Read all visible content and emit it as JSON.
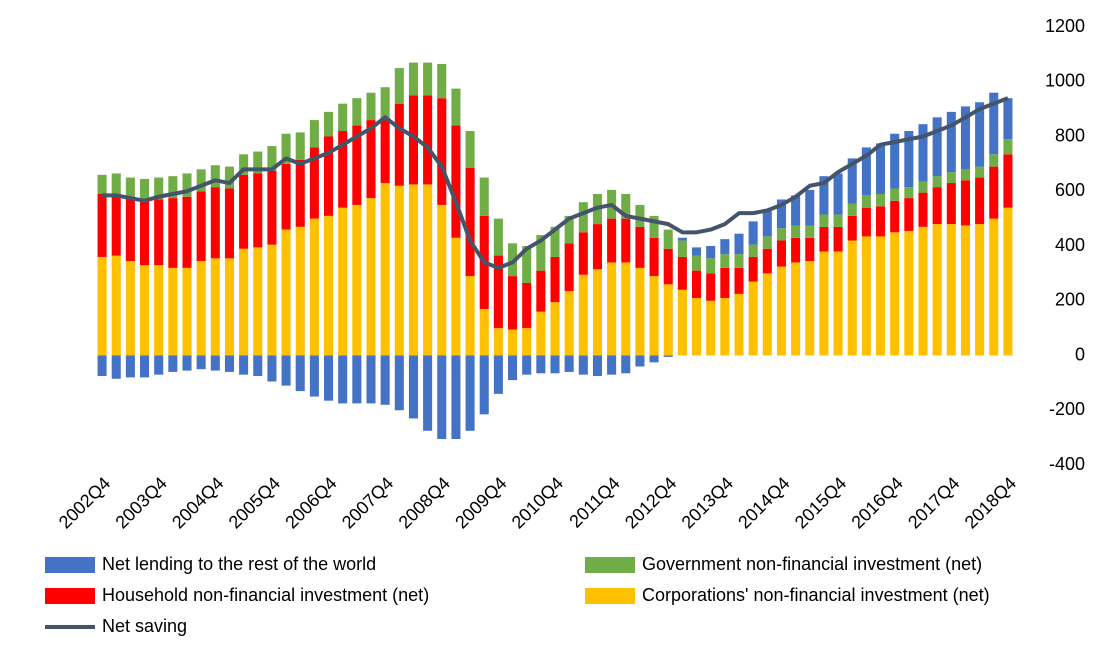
{
  "chart_data": {
    "type": "bar",
    "stacked": true,
    "categories": [
      "2002Q4",
      null,
      null,
      null,
      "2003Q4",
      null,
      null,
      null,
      "2004Q4",
      null,
      null,
      null,
      "2005Q4",
      null,
      null,
      null,
      "2006Q4",
      null,
      null,
      null,
      "2007Q4",
      null,
      null,
      null,
      "2008Q4",
      null,
      null,
      null,
      "2009Q4",
      null,
      null,
      null,
      "2010Q4",
      null,
      null,
      null,
      "2011Q4",
      null,
      null,
      null,
      "2012Q4",
      null,
      null,
      null,
      "2013Q4",
      null,
      null,
      null,
      "2014Q4",
      null,
      null,
      null,
      "2015Q4",
      null,
      null,
      null,
      "2016Q4",
      null,
      null,
      null,
      "2017Q4",
      null,
      null,
      null,
      "2018Q4"
    ],
    "series": [
      {
        "name": "Net lending to the rest of the world",
        "color": "#4472c4",
        "values": [
          -75,
          -85,
          -80,
          -80,
          -70,
          -60,
          -55,
          -50,
          -55,
          -60,
          -70,
          -75,
          -95,
          -110,
          -130,
          -150,
          -165,
          -175,
          -175,
          -175,
          -180,
          -200,
          -230,
          -275,
          -305,
          -305,
          -275,
          -215,
          -140,
          -90,
          -70,
          -65,
          -65,
          -60,
          -70,
          -75,
          -70,
          -65,
          -40,
          -25,
          -5,
          10,
          30,
          45,
          55,
          75,
          85,
          95,
          105,
          110,
          130,
          140,
          150,
          165,
          175,
          185,
          200,
          205,
          210,
          215,
          220,
          230,
          235,
          225,
          150
        ]
      },
      {
        "name": "Government non-financial investment (net)",
        "color": "#70ad47",
        "values": [
          70,
          80,
          75,
          80,
          80,
          80,
          85,
          80,
          80,
          80,
          75,
          80,
          90,
          110,
          100,
          100,
          90,
          100,
          100,
          100,
          110,
          130,
          120,
          120,
          125,
          135,
          135,
          140,
          135,
          120,
          135,
          130,
          110,
          100,
          110,
          110,
          105,
          90,
          80,
          80,
          70,
          60,
          55,
          55,
          50,
          50,
          45,
          45,
          45,
          45,
          45,
          45,
          45,
          45,
          45,
          45,
          45,
          40,
          40,
          40,
          40,
          40,
          40,
          45,
          55
        ]
      },
      {
        "name": "Household non-financial investment (net)",
        "color": "#ff0000",
        "values": [
          230,
          220,
          230,
          235,
          240,
          255,
          260,
          255,
          260,
          255,
          270,
          270,
          270,
          240,
          245,
          260,
          290,
          280,
          290,
          285,
          240,
          300,
          325,
          325,
          390,
          410,
          395,
          340,
          265,
          195,
          165,
          150,
          165,
          175,
          155,
          165,
          160,
          160,
          150,
          140,
          130,
          120,
          100,
          100,
          110,
          95,
          90,
          90,
          95,
          90,
          85,
          90,
          90,
          90,
          105,
          110,
          115,
          120,
          125,
          135,
          150,
          165,
          170,
          190,
          195
        ]
      },
      {
        "name": "Corporations' non-financial investment (net)",
        "color": "#ffc000",
        "values": [
          360,
          365,
          345,
          330,
          330,
          320,
          320,
          345,
          355,
          355,
          390,
          395,
          405,
          460,
          470,
          500,
          510,
          540,
          550,
          575,
          630,
          620,
          625,
          625,
          550,
          430,
          290,
          170,
          100,
          95,
          100,
          160,
          195,
          235,
          295,
          315,
          340,
          340,
          320,
          290,
          260,
          240,
          210,
          200,
          210,
          225,
          270,
          300,
          325,
          340,
          345,
          380,
          380,
          420,
          435,
          435,
          450,
          455,
          470,
          480,
          480,
          475,
          480,
          500,
          540
        ]
      },
      {
        "name": "Net saving",
        "type": "line",
        "color": "#44546a",
        "values": [
          585,
          585,
          575,
          565,
          580,
          590,
          600,
          620,
          640,
          630,
          680,
          680,
          680,
          720,
          700,
          720,
          740,
          770,
          800,
          830,
          870,
          830,
          800,
          760,
          690,
          560,
          420,
          340,
          320,
          340,
          390,
          420,
          460,
          500,
          520,
          540,
          550,
          510,
          500,
          490,
          480,
          450,
          450,
          460,
          480,
          520,
          520,
          530,
          550,
          580,
          620,
          630,
          670,
          700,
          730,
          770,
          780,
          790,
          800,
          820,
          840,
          870,
          900,
          920,
          940
        ]
      }
    ],
    "ylim": [
      -400,
      1200
    ],
    "yticks": [
      -400,
      -200,
      0,
      200,
      400,
      600,
      800,
      1000,
      1200
    ],
    "axis_side": "right",
    "grid": false
  }
}
